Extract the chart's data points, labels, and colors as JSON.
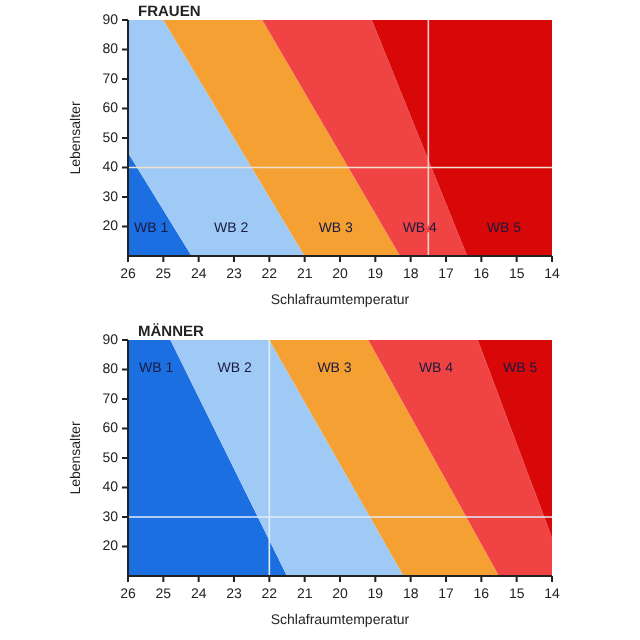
{
  "chart_data": [
    {
      "type": "area",
      "title": "FRAUEN",
      "xlabel": "Schlafraumtemperatur",
      "ylabel": "Lebensalter",
      "orientation": "horizontal",
      "xlim": [
        26,
        14
      ],
      "xticks": [
        26,
        25,
        24,
        23,
        22,
        21,
        20,
        19,
        18,
        17,
        16,
        15,
        14
      ],
      "ylim": [
        10,
        90
      ],
      "yticks": [
        20,
        30,
        40,
        50,
        60,
        70,
        80,
        90
      ],
      "series": [
        {
          "name": "WB 1",
          "color": "#1c6fe0",
          "x": [
            10,
            90
          ],
          "values": [
            26,
            26
          ]
        },
        {
          "name": "WB 2",
          "color": "#9fcaf5",
          "x": [
            10,
            45,
            90
          ],
          "values": [
            24.2,
            26,
            26
          ]
        },
        {
          "name": "WB 3",
          "color": "#f5a032",
          "x": [
            10,
            90
          ],
          "values": [
            21.0,
            25.0
          ]
        },
        {
          "name": "WB 4",
          "color": "#f04343",
          "x": [
            10,
            90
          ],
          "values": [
            18.3,
            22.2
          ]
        },
        {
          "name": "WB 5",
          "color": "#d80808",
          "x": [
            10,
            90
          ],
          "values": [
            16.4,
            19.1
          ]
        }
      ],
      "ref_lines": [
        {
          "axis": "x",
          "value": 17.5,
          "color": "#f0d0d0"
        },
        {
          "axis": "y",
          "value": 40,
          "color": "#f0e0d0"
        }
      ]
    },
    {
      "type": "area",
      "title": "MÄNNER",
      "xlabel": "Schlafraumtemperatur",
      "ylabel": "Lebensalter",
      "orientation": "horizontal",
      "xlim": [
        26,
        14
      ],
      "xticks": [
        26,
        25,
        24,
        23,
        22,
        21,
        20,
        19,
        18,
        17,
        16,
        15,
        14
      ],
      "ylim": [
        10,
        90
      ],
      "yticks": [
        20,
        30,
        40,
        50,
        60,
        70,
        80,
        90
      ],
      "series": [
        {
          "name": "WB 1",
          "color": "#1c6fe0",
          "x": [
            10,
            90
          ],
          "values": [
            26,
            26
          ]
        },
        {
          "name": "WB 2",
          "color": "#9fcaf5",
          "x": [
            10,
            90
          ],
          "values": [
            21.5,
            24.8
          ]
        },
        {
          "name": "WB 3",
          "color": "#f5a032",
          "x": [
            10,
            90
          ],
          "values": [
            18.2,
            22.0
          ]
        },
        {
          "name": "WB 4",
          "color": "#f04343",
          "x": [
            10,
            90
          ],
          "values": [
            15.5,
            19.2
          ]
        },
        {
          "name": "WB 5",
          "color": "#d80808",
          "x": [
            23,
            90
          ],
          "values": [
            14,
            16.1
          ]
        }
      ],
      "ref_lines": [
        {
          "axis": "x",
          "value": 22,
          "color": "#e0ecf8"
        },
        {
          "axis": "y",
          "value": 30,
          "color": "#e0ecf8"
        }
      ]
    }
  ]
}
